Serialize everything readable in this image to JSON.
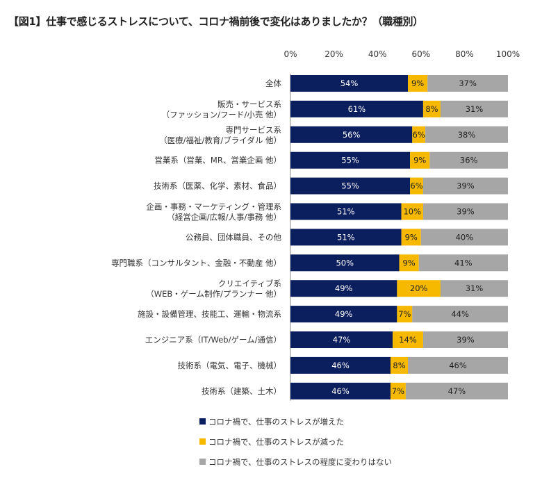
{
  "title": "【図1】仕事で感じるストレスについて、コロナ禍前後で変化はありましたか？（職種別）",
  "chart_data": {
    "type": "bar",
    "orientation": "horizontal",
    "stacked": "percent",
    "title": "【図1】仕事で感じるストレスについて、コロナ禍前後で変化はありましたか？（職種別）",
    "xlim": [
      0,
      100
    ],
    "ticks": [
      "0%",
      "20%",
      "40%",
      "60%",
      "80%",
      "100%"
    ],
    "tick_values": [
      0,
      20,
      40,
      60,
      80,
      100
    ],
    "legend_position": "bottom",
    "grid": false,
    "categories": [
      [
        "全体"
      ],
      [
        "販売・サービス系",
        "（ファッション/フード/小売 他）"
      ],
      [
        "専門サービス系",
        "（医療/福祉/教育/ブライダル 他）"
      ],
      [
        "営業系（営業、MR、営業企画 他）"
      ],
      [
        "技術系（医薬、化学、素材、食品）"
      ],
      [
        "企画・事務・マーケティング・管理系",
        "（経営企画/広報/人事/事務 他）"
      ],
      [
        "公務員、団体職員、その他"
      ],
      [
        "専門職系（コンサルタント、金融・不動産 他）"
      ],
      [
        "クリエイティブ系",
        "（WEB・ゲーム制作/プランナー 他）"
      ],
      [
        "施設・設備管理、技能工、運輸・物流系"
      ],
      [
        "エンジニア系（IT/Web/ゲーム/通信）"
      ],
      [
        "技術系（電気、電子、機械）"
      ],
      [
        "技術系（建築、土木）"
      ]
    ],
    "series": [
      {
        "name": "コロナ禍で、仕事のストレスが増えた",
        "color": "#0b1f5e",
        "label_color": "#ffffff",
        "values": [
          54,
          61,
          56,
          55,
          55,
          51,
          51,
          50,
          49,
          49,
          47,
          46,
          46
        ]
      },
      {
        "name": "コロナ禍で、仕事のストレスが減った",
        "color": "#f7b900",
        "label_color": "#222222",
        "values": [
          9,
          8,
          6,
          9,
          6,
          10,
          9,
          9,
          20,
          7,
          14,
          8,
          7
        ]
      },
      {
        "name": "コロナ禍で、仕事のストレスの程度に変わりはない",
        "color": "#a6a6a6",
        "label_color": "#222222",
        "values": [
          37,
          31,
          38,
          36,
          39,
          39,
          40,
          41,
          31,
          44,
          39,
          46,
          47
        ]
      }
    ]
  }
}
